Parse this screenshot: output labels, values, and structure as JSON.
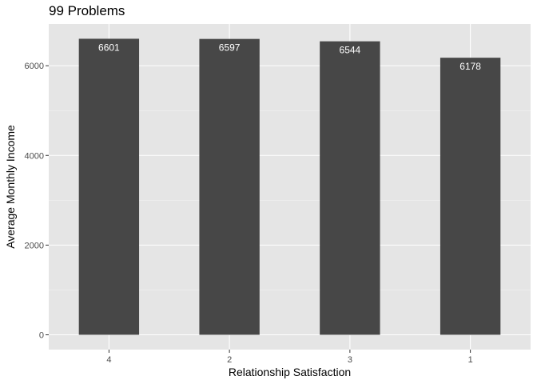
{
  "chart_data": {
    "type": "bar",
    "title": "99 Problems",
    "xlabel": "Relationship Satisfaction",
    "ylabel": "Average Monthly Income",
    "categories": [
      "4",
      "2",
      "3",
      "1"
    ],
    "values": [
      6601,
      6597,
      6544,
      6178
    ],
    "data_labels": [
      "6601",
      "6597",
      "6544",
      "6178"
    ],
    "yticks": [
      0,
      2000,
      4000,
      6000
    ],
    "ylim": [
      -330,
      6930
    ],
    "grid": true,
    "legend": "none",
    "colors": {
      "bar": "#474747",
      "panel": "#e5e5e5",
      "grid_major": "#ffffff",
      "label": "#ffffff"
    }
  }
}
